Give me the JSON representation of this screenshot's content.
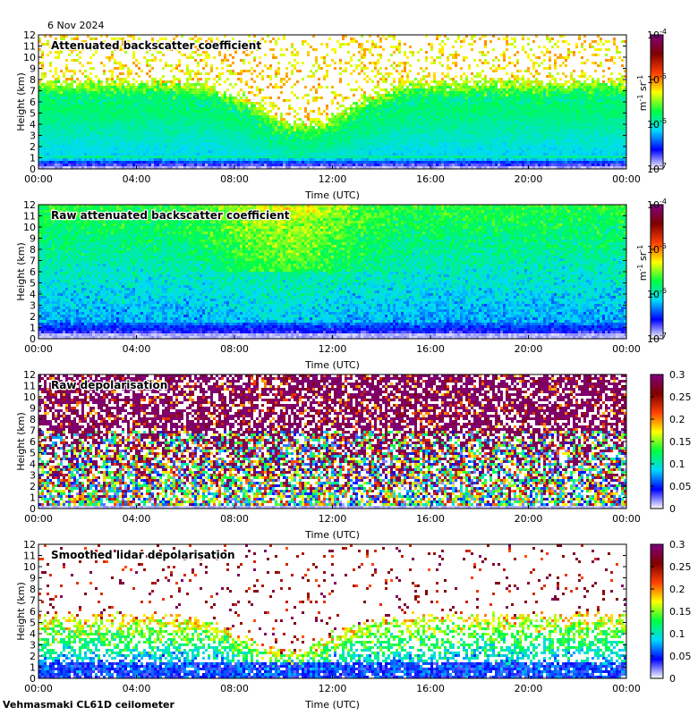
{
  "date": "6 Nov 2024",
  "footer": "Vehmasmaki CL61D ceilometer",
  "colors": {
    "background": "#dcdcdc",
    "colormap": [
      "#ffffff",
      "#0000ff",
      "#00d9ff",
      "#00ff40",
      "#ffff00",
      "#ff4000",
      "#800000",
      "#800080"
    ]
  },
  "chart_data": [
    {
      "type": "heatmap",
      "title": "Attenuated backscatter coefficient",
      "xlabel": "Time (UTC)",
      "ylabel": "Height (km)",
      "x_ticks": [
        "00:00",
        "04:00",
        "08:00",
        "12:00",
        "16:00",
        "20:00",
        "00:00"
      ],
      "y_ticks": [
        "0",
        "1",
        "2",
        "3",
        "4",
        "5",
        "6",
        "7",
        "8",
        "9",
        "10",
        "11",
        "12"
      ],
      "ylim": [
        0,
        12
      ],
      "colorbar": {
        "scale": "log",
        "label_base": "m",
        "label_exp1": "-1",
        "label_mid": " sr",
        "label_exp2": "-1",
        "ticks": [
          {
            "base": "10",
            "exp": "-7"
          },
          {
            "base": "10",
            "exp": "-6"
          },
          {
            "base": "10",
            "exp": "-5"
          },
          {
            "base": "10",
            "exp": "-4"
          }
        ]
      },
      "variant": "smoothed_backscatter"
    },
    {
      "type": "heatmap",
      "title": "Raw attenuated backscatter coefficient",
      "xlabel": "Time (UTC)",
      "ylabel": "Height (km)",
      "x_ticks": [
        "00:00",
        "04:00",
        "08:00",
        "12:00",
        "16:00",
        "20:00",
        "00:00"
      ],
      "y_ticks": [
        "0",
        "1",
        "2",
        "3",
        "4",
        "5",
        "6",
        "7",
        "8",
        "9",
        "10",
        "11",
        "12"
      ],
      "ylim": [
        0,
        12
      ],
      "colorbar": {
        "scale": "log",
        "label_base": "m",
        "label_exp1": "-1",
        "label_mid": " sr",
        "label_exp2": "-1",
        "ticks": [
          {
            "base": "10",
            "exp": "-7"
          },
          {
            "base": "10",
            "exp": "-6"
          },
          {
            "base": "10",
            "exp": "-5"
          },
          {
            "base": "10",
            "exp": "-4"
          }
        ]
      },
      "variant": "raw_backscatter"
    },
    {
      "type": "heatmap",
      "title": "Raw depolarisation",
      "xlabel": "Time (UTC)",
      "ylabel": "Height (km)",
      "x_ticks": [
        "00:00",
        "04:00",
        "08:00",
        "12:00",
        "16:00",
        "20:00",
        "00:00"
      ],
      "y_ticks": [
        "0",
        "1",
        "2",
        "3",
        "4",
        "5",
        "6",
        "7",
        "8",
        "9",
        "10",
        "11",
        "12"
      ],
      "ylim": [
        0,
        12
      ],
      "colorbar": {
        "scale": "linear",
        "range": [
          0,
          0.3
        ],
        "ticks": [
          "0",
          "0.05",
          "0.1",
          "0.15",
          "0.2",
          "0.25",
          "0.3"
        ]
      },
      "variant": "raw_depolarisation"
    },
    {
      "type": "heatmap",
      "title": "Smoothed lidar depolarisation",
      "xlabel": "Time (UTC)",
      "ylabel": "Height (km)",
      "x_ticks": [
        "00:00",
        "04:00",
        "08:00",
        "12:00",
        "16:00",
        "20:00",
        "00:00"
      ],
      "y_ticks": [
        "0",
        "1",
        "2",
        "3",
        "4",
        "5",
        "6",
        "7",
        "8",
        "9",
        "10",
        "11",
        "12"
      ],
      "ylim": [
        0,
        12
      ],
      "colorbar": {
        "scale": "linear",
        "range": [
          0,
          0.3
        ],
        "ticks": [
          "0",
          "0.05",
          "0.1",
          "0.15",
          "0.2",
          "0.25",
          "0.3"
        ]
      },
      "variant": "smoothed_depolarisation"
    }
  ]
}
